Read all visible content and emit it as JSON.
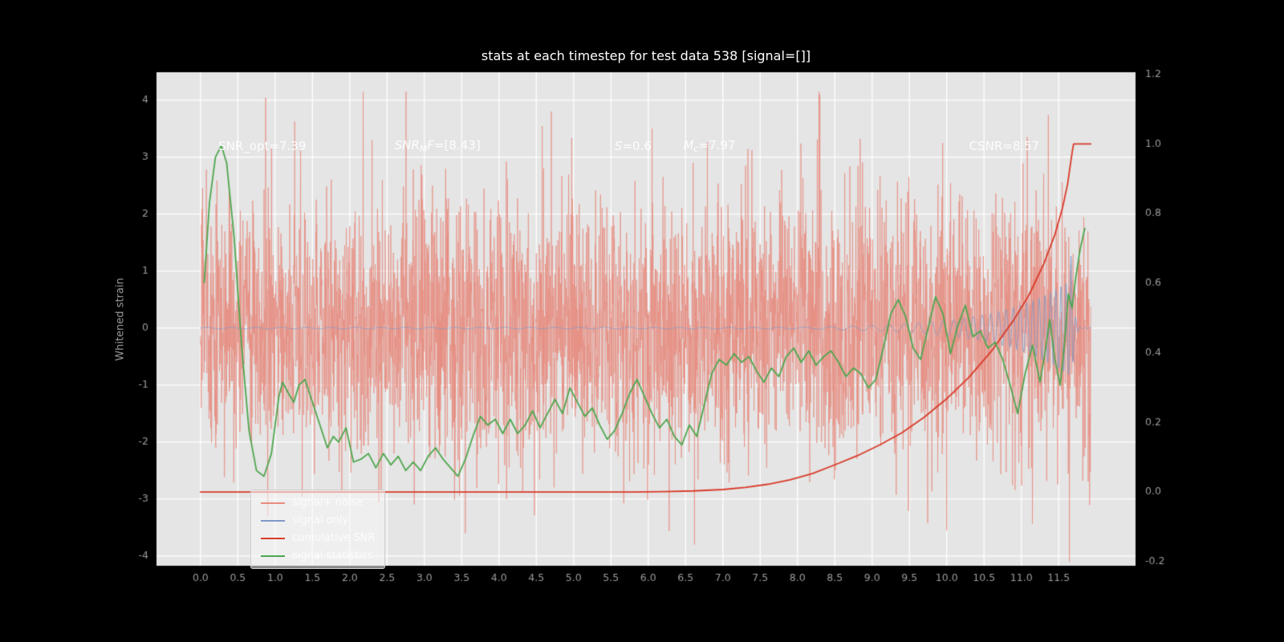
{
  "chart_data": {
    "type": "line",
    "title": "stats at each timestep for test data 538 [signal=[]]",
    "xlabel": "",
    "ylabel": "Whitened strain",
    "ylabel_right": "",
    "xlim": [
      -0.59,
      12.53
    ],
    "ylim_left": [
      -4.17,
      4.49
    ],
    "ylim_right": [
      -0.212,
      1.206
    ],
    "x_ticks": [
      0.0,
      0.5,
      1.0,
      1.5,
      2.0,
      2.5,
      3.0,
      3.5,
      4.0,
      4.5,
      5.0,
      5.5,
      6.0,
      6.5,
      7.0,
      7.5,
      8.0,
      8.5,
      9.0,
      9.5,
      10.0,
      10.5,
      11.0,
      11.5
    ],
    "y_ticks_left": [
      -4,
      -3,
      -2,
      -1,
      0,
      1,
      2,
      3,
      4
    ],
    "y_ticks_right": [
      -0.2,
      0.0,
      0.2,
      0.4,
      0.6,
      0.8,
      1.0,
      1.2
    ],
    "colors": {
      "background": "#000000",
      "plot_bg": "#e5e5e5",
      "grid": "#ffffff",
      "tick_label": "#9b9b9b",
      "title": "#ffffff",
      "annotation": "#ffffff"
    },
    "legend": {
      "position": "lower-left"
    },
    "annotations": [
      {
        "x": 0.24,
        "y": 3.2,
        "parts": [
          {
            "text": "SNR_opt=7.39",
            "italic": false,
            "sub": false
          }
        ]
      },
      {
        "x": 2.6,
        "y": 3.2,
        "parts": [
          {
            "text": "SNR",
            "italic": true,
            "sub": false
          },
          {
            "text": "M",
            "italic": true,
            "sub": true
          },
          {
            "text": "F",
            "italic": true,
            "sub": false
          },
          {
            "text": "=[8.43]",
            "italic": false,
            "sub": false
          }
        ]
      },
      {
        "x": 5.55,
        "y": 3.2,
        "parts": [
          {
            "text": "S",
            "italic": true,
            "sub": false
          },
          {
            "text": "=0.6",
            "italic": false,
            "sub": false
          }
        ]
      },
      {
        "x": 6.47,
        "y": 3.2,
        "parts": [
          {
            "text": "M",
            "italic": true,
            "sub": false
          },
          {
            "text": "c",
            "italic": true,
            "sub": true
          },
          {
            "text": "=7.97",
            "italic": false,
            "sub": false
          }
        ]
      },
      {
        "x": 10.3,
        "y": 3.2,
        "parts": [
          {
            "text": "CSNR=8.57",
            "italic": false,
            "sub": false
          }
        ]
      }
    ],
    "series": [
      {
        "name": "signal+ noise",
        "type": "noise",
        "axis": "left",
        "color": "#e78c80",
        "line_width": 0.8,
        "alpha": 0.92,
        "seed": 1338,
        "n": 3800,
        "x_start": 0.0,
        "x_end": 11.93,
        "std": 1.12,
        "spike_prob": 0.004,
        "spike_scale": 1.9,
        "spikes": [
          [
            0.9,
            -3.3
          ],
          [
            2.3,
            3.3
          ],
          [
            3.55,
            -3.6
          ],
          [
            4.7,
            3.8
          ],
          [
            6.05,
            3.5
          ],
          [
            6.62,
            -3.8
          ],
          [
            8.3,
            4.1
          ],
          [
            10.0,
            -3.55
          ],
          [
            11.08,
            3.35
          ]
        ]
      },
      {
        "name": "signal only",
        "type": "chirp",
        "axis": "left",
        "color": "#7f9ac8",
        "line_width": 0.9,
        "alpha": 0.95,
        "x_start": 0.0,
        "x_end": 11.93,
        "base_amp": 0.012,
        "growth_start": 8.0,
        "amp0": 0.015,
        "amp_k": 1.1,
        "f_base": 3.0,
        "f0": 2.5,
        "f_k": 0.5,
        "merger": 11.68,
        "ringdown_tau": 0.03,
        "merger_boost": 0.55,
        "merger_boost_width": 0.012
      },
      {
        "name": "cumulative SNR",
        "type": "points",
        "axis": "right",
        "color": "#d93b2a",
        "line_width": 1.8,
        "alpha": 1.0,
        "data": [
          [
            0,
            0
          ],
          [
            1,
            0
          ],
          [
            2,
            0
          ],
          [
            3,
            0
          ],
          [
            4,
            0
          ],
          [
            5,
            0
          ],
          [
            5.8,
            0
          ],
          [
            6.2,
            0.001
          ],
          [
            6.6,
            0.003
          ],
          [
            7.0,
            0.007
          ],
          [
            7.3,
            0.013
          ],
          [
            7.6,
            0.022
          ],
          [
            7.9,
            0.035
          ],
          [
            8.2,
            0.053
          ],
          [
            8.5,
            0.078
          ],
          [
            8.8,
            0.104
          ],
          [
            9.1,
            0.135
          ],
          [
            9.4,
            0.17
          ],
          [
            9.7,
            0.215
          ],
          [
            10.0,
            0.268
          ],
          [
            10.3,
            0.33
          ],
          [
            10.6,
            0.405
          ],
          [
            10.9,
            0.495
          ],
          [
            11.1,
            0.565
          ],
          [
            11.3,
            0.655
          ],
          [
            11.45,
            0.74
          ],
          [
            11.55,
            0.815
          ],
          [
            11.62,
            0.885
          ],
          [
            11.68,
            0.975
          ],
          [
            11.7,
            1.0
          ],
          [
            11.93,
            1.0
          ]
        ]
      },
      {
        "name": "signal statistics",
        "type": "points",
        "axis": "left",
        "color": "#4fa64f",
        "line_width": 1.8,
        "alpha": 1.0,
        "data": [
          [
            0.05,
            0.8
          ],
          [
            0.12,
            2.2
          ],
          [
            0.2,
            3.0
          ],
          [
            0.28,
            3.2
          ],
          [
            0.35,
            2.9
          ],
          [
            0.45,
            1.6
          ],
          [
            0.55,
            -0.3
          ],
          [
            0.65,
            -1.8
          ],
          [
            0.75,
            -2.5
          ],
          [
            0.85,
            -2.6
          ],
          [
            0.95,
            -2.2
          ],
          [
            1.0,
            -1.7
          ],
          [
            1.05,
            -1.2
          ],
          [
            1.1,
            -0.95
          ],
          [
            1.18,
            -1.15
          ],
          [
            1.25,
            -1.3
          ],
          [
            1.32,
            -1.0
          ],
          [
            1.4,
            -0.9
          ],
          [
            1.5,
            -1.3
          ],
          [
            1.6,
            -1.7
          ],
          [
            1.7,
            -2.1
          ],
          [
            1.78,
            -1.9
          ],
          [
            1.85,
            -2.0
          ],
          [
            1.95,
            -1.75
          ],
          [
            2.05,
            -2.35
          ],
          [
            2.15,
            -2.3
          ],
          [
            2.25,
            -2.2
          ],
          [
            2.35,
            -2.45
          ],
          [
            2.45,
            -2.2
          ],
          [
            2.55,
            -2.4
          ],
          [
            2.65,
            -2.25
          ],
          [
            2.75,
            -2.5
          ],
          [
            2.85,
            -2.35
          ],
          [
            2.95,
            -2.5
          ],
          [
            3.05,
            -2.25
          ],
          [
            3.15,
            -2.1
          ],
          [
            3.25,
            -2.3
          ],
          [
            3.35,
            -2.45
          ],
          [
            3.45,
            -2.6
          ],
          [
            3.55,
            -2.3
          ],
          [
            3.65,
            -1.9
          ],
          [
            3.75,
            -1.55
          ],
          [
            3.85,
            -1.7
          ],
          [
            3.95,
            -1.6
          ],
          [
            4.05,
            -1.85
          ],
          [
            4.15,
            -1.6
          ],
          [
            4.25,
            -1.85
          ],
          [
            4.35,
            -1.7
          ],
          [
            4.45,
            -1.45
          ],
          [
            4.55,
            -1.75
          ],
          [
            4.65,
            -1.5
          ],
          [
            4.75,
            -1.25
          ],
          [
            4.85,
            -1.5
          ],
          [
            4.95,
            -1.05
          ],
          [
            5.05,
            -1.3
          ],
          [
            5.15,
            -1.55
          ],
          [
            5.25,
            -1.4
          ],
          [
            5.35,
            -1.7
          ],
          [
            5.45,
            -1.95
          ],
          [
            5.55,
            -1.8
          ],
          [
            5.65,
            -1.5
          ],
          [
            5.75,
            -1.15
          ],
          [
            5.85,
            -0.9
          ],
          [
            5.95,
            -1.2
          ],
          [
            6.05,
            -1.5
          ],
          [
            6.15,
            -1.75
          ],
          [
            6.25,
            -1.6
          ],
          [
            6.35,
            -1.9
          ],
          [
            6.45,
            -2.05
          ],
          [
            6.55,
            -1.7
          ],
          [
            6.65,
            -1.9
          ],
          [
            6.75,
            -1.35
          ],
          [
            6.85,
            -0.8
          ],
          [
            6.95,
            -0.55
          ],
          [
            7.05,
            -0.65
          ],
          [
            7.15,
            -0.45
          ],
          [
            7.25,
            -0.6
          ],
          [
            7.35,
            -0.5
          ],
          [
            7.45,
            -0.75
          ],
          [
            7.55,
            -0.95
          ],
          [
            7.65,
            -0.7
          ],
          [
            7.75,
            -0.85
          ],
          [
            7.85,
            -0.5
          ],
          [
            7.95,
            -0.35
          ],
          [
            8.05,
            -0.6
          ],
          [
            8.15,
            -0.4
          ],
          [
            8.25,
            -0.65
          ],
          [
            8.35,
            -0.5
          ],
          [
            8.45,
            -0.4
          ],
          [
            8.55,
            -0.6
          ],
          [
            8.65,
            -0.85
          ],
          [
            8.75,
            -0.7
          ],
          [
            8.85,
            -0.8
          ],
          [
            8.95,
            -1.05
          ],
          [
            9.05,
            -0.9
          ],
          [
            9.15,
            -0.35
          ],
          [
            9.25,
            0.25
          ],
          [
            9.35,
            0.5
          ],
          [
            9.45,
            0.2
          ],
          [
            9.55,
            -0.35
          ],
          [
            9.65,
            -0.55
          ],
          [
            9.75,
            0.0
          ],
          [
            9.85,
            0.55
          ],
          [
            9.95,
            0.25
          ],
          [
            10.05,
            -0.45
          ],
          [
            10.15,
            0.05
          ],
          [
            10.25,
            0.4
          ],
          [
            10.35,
            -0.15
          ],
          [
            10.45,
            -0.05
          ],
          [
            10.55,
            -0.35
          ],
          [
            10.65,
            -0.25
          ],
          [
            10.75,
            -0.55
          ],
          [
            10.85,
            -1.0
          ],
          [
            10.95,
            -1.5
          ],
          [
            11.05,
            -0.8
          ],
          [
            11.15,
            -0.3
          ],
          [
            11.25,
            -0.95
          ],
          [
            11.32,
            -0.4
          ],
          [
            11.38,
            0.15
          ],
          [
            11.45,
            -0.55
          ],
          [
            11.52,
            -1.0
          ],
          [
            11.58,
            -0.25
          ],
          [
            11.63,
            0.6
          ],
          [
            11.68,
            0.35
          ],
          [
            11.73,
            0.9
          ],
          [
            11.79,
            1.4
          ],
          [
            11.85,
            1.75
          ]
        ]
      }
    ]
  }
}
